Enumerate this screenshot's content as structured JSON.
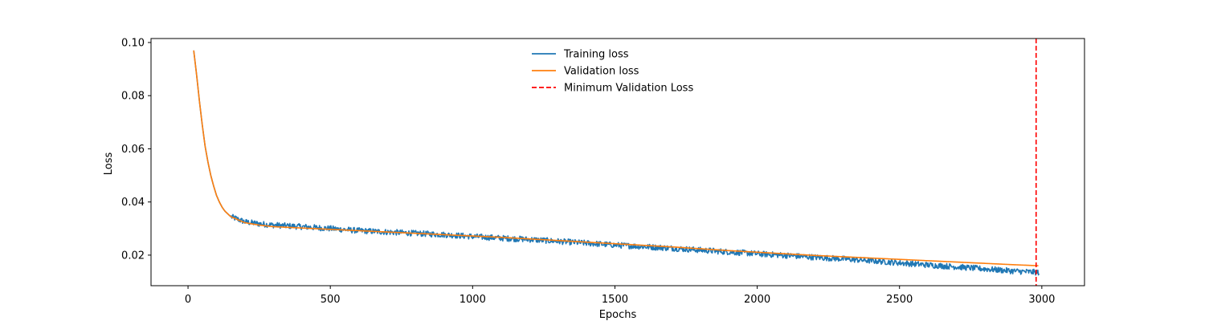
{
  "chart_data": {
    "type": "line",
    "title": "",
    "xlabel": "Epochs",
    "ylabel": "Loss",
    "xlim": [
      -130,
      3150
    ],
    "ylim": [
      0.0085,
      0.1015
    ],
    "xticks": [
      0,
      500,
      1000,
      1500,
      2000,
      2500,
      3000
    ],
    "xtick_labels": [
      "0",
      "500",
      "1000",
      "1500",
      "2000",
      "2500",
      "3000"
    ],
    "yticks": [
      0.02,
      0.04,
      0.06,
      0.08,
      0.1
    ],
    "ytick_labels": [
      "0.02",
      "0.04",
      "0.06",
      "0.08",
      "0.10"
    ],
    "grid": false,
    "legend_position": "top-center",
    "series": [
      {
        "name": "Training loss",
        "color": "#1f77b4",
        "style": "solid",
        "noisy": true,
        "x": [
          20,
          30,
          40,
          50,
          60,
          70,
          80,
          90,
          100,
          110,
          120,
          130,
          140,
          150,
          175,
          200,
          250,
          300,
          400,
          500,
          600,
          700,
          800,
          900,
          1000,
          1100,
          1200,
          1300,
          1400,
          1500,
          1600,
          1700,
          1800,
          1900,
          2000,
          2100,
          2200,
          2300,
          2400,
          2500,
          2600,
          2700,
          2800,
          2900,
          2990
        ],
        "y": [
          0.097,
          0.088,
          0.078,
          0.069,
          0.061,
          0.055,
          0.05,
          0.046,
          0.0425,
          0.04,
          0.038,
          0.0365,
          0.0355,
          0.0345,
          0.0335,
          0.0325,
          0.0318,
          0.0313,
          0.0307,
          0.03,
          0.0292,
          0.0287,
          0.0282,
          0.0277,
          0.027,
          0.0264,
          0.0259,
          0.0252,
          0.0245,
          0.0238,
          0.0232,
          0.0226,
          0.0219,
          0.0212,
          0.0205,
          0.0199,
          0.0192,
          0.0186,
          0.0179,
          0.0171,
          0.0163,
          0.0156,
          0.0148,
          0.014,
          0.0135
        ]
      },
      {
        "name": "Validation loss",
        "color": "#ff7f0e",
        "style": "solid",
        "noisy": false,
        "x": [
          20,
          30,
          40,
          50,
          60,
          70,
          80,
          90,
          100,
          110,
          120,
          130,
          140,
          150,
          175,
          200,
          250,
          300,
          400,
          500,
          600,
          700,
          800,
          900,
          1000,
          1100,
          1200,
          1300,
          1400,
          1500,
          1600,
          1700,
          1800,
          1900,
          2000,
          2100,
          2200,
          2300,
          2400,
          2500,
          2600,
          2700,
          2800,
          2900,
          2990
        ],
        "y": [
          0.097,
          0.088,
          0.078,
          0.069,
          0.061,
          0.055,
          0.05,
          0.046,
          0.0425,
          0.04,
          0.038,
          0.0365,
          0.0355,
          0.0345,
          0.0333,
          0.0322,
          0.0313,
          0.0307,
          0.0302,
          0.0297,
          0.0292,
          0.0287,
          0.0282,
          0.0277,
          0.0272,
          0.0267,
          0.0261,
          0.0255,
          0.0249,
          0.0243,
          0.0237,
          0.0231,
          0.0224,
          0.0217,
          0.0211,
          0.0205,
          0.0199,
          0.0194,
          0.0189,
          0.0184,
          0.0179,
          0.0174,
          0.0169,
          0.0164,
          0.016
        ]
      }
    ],
    "vline": {
      "name": "Minimum Validation Loss",
      "x": 2980,
      "color": "#ff0000",
      "style": "dashed"
    }
  }
}
